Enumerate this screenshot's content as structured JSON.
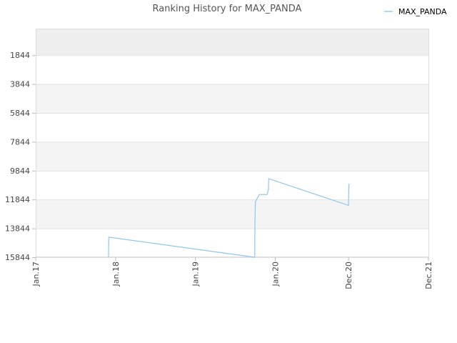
{
  "chart_data": {
    "type": "line",
    "title": "Ranking History for MAX_PANDA",
    "xlabel": "",
    "ylabel": "",
    "legend": "top-right",
    "grid": true,
    "y_inverted": true,
    "ylim": [
      15844,
      0
    ],
    "y_ticks": [
      "1844",
      "3844",
      "5844",
      "7844",
      "9844",
      "11844",
      "13844",
      "15844"
    ],
    "x_ticks": [
      "Jan.17",
      "Jan.18",
      "Jan.19",
      "Jan.20",
      "Dec.20",
      "Dec.21"
    ],
    "x_tick_dates": [
      "2017-01-01",
      "2018-01-01",
      "2019-01-01",
      "2020-01-01",
      "2020-12-01",
      "2021-12-01"
    ],
    "series": [
      {
        "name": "MAX_PANDA",
        "color": "#8ec6ee",
        "points": [
          {
            "x": "2017-11-30",
            "y": 15844
          },
          {
            "x": "2017-12-01",
            "y": 14450
          },
          {
            "x": "2019-09-29",
            "y": 15844
          },
          {
            "x": "2019-09-30",
            "y": 13500
          },
          {
            "x": "2019-10-02",
            "y": 12000
          },
          {
            "x": "2019-10-20",
            "y": 11500
          },
          {
            "x": "2019-11-25",
            "y": 11500
          },
          {
            "x": "2019-12-01",
            "y": 11100
          },
          {
            "x": "2019-12-02",
            "y": 10400
          },
          {
            "x": "2020-12-01",
            "y": 12250
          },
          {
            "x": "2020-12-02",
            "y": 10800
          },
          {
            "x": "2020-12-05",
            "y": 10750
          }
        ]
      }
    ]
  }
}
